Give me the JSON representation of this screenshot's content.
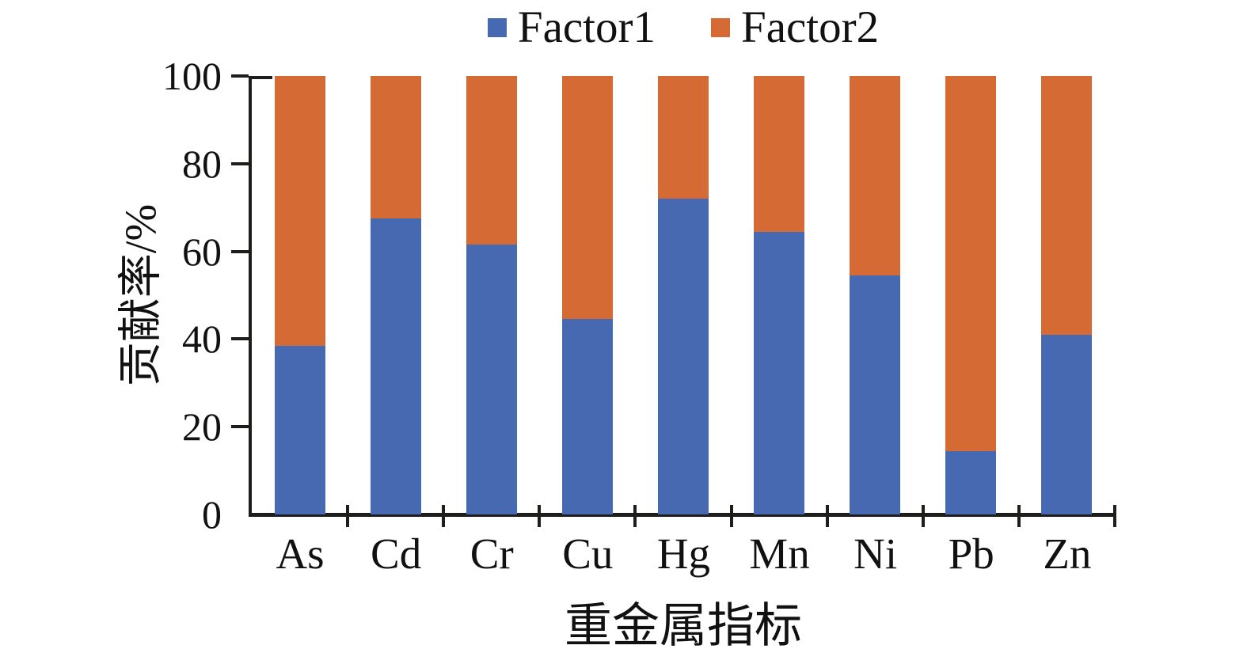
{
  "chart_data": {
    "type": "bar",
    "stacked": true,
    "title": "",
    "xlabel": "重金属指标",
    "ylabel": "贡献率/%",
    "categories": [
      "As",
      "Cd",
      "Cr",
      "Cu",
      "Hg",
      "Mn",
      "Ni",
      "Pb",
      "Zn"
    ],
    "series": [
      {
        "name": "Factor1",
        "color": "#4769b1",
        "values": [
          38.5,
          67.5,
          61.5,
          44.5,
          72.0,
          64.5,
          54.5,
          14.5,
          41.0
        ]
      },
      {
        "name": "Factor2",
        "color": "#d66a35",
        "values": [
          61.5,
          32.5,
          38.5,
          55.5,
          28.0,
          35.5,
          45.5,
          85.5,
          59.0
        ]
      }
    ],
    "ylim": [
      0,
      100
    ],
    "yticks": [
      0,
      20,
      40,
      60,
      80,
      100
    ],
    "ytick_labels": [
      "0",
      "20",
      "40",
      "60",
      "80",
      "100"
    ],
    "legend_position": "top-center",
    "grid": false,
    "axis_color": "#1d1d1b",
    "bar_total": 100
  }
}
